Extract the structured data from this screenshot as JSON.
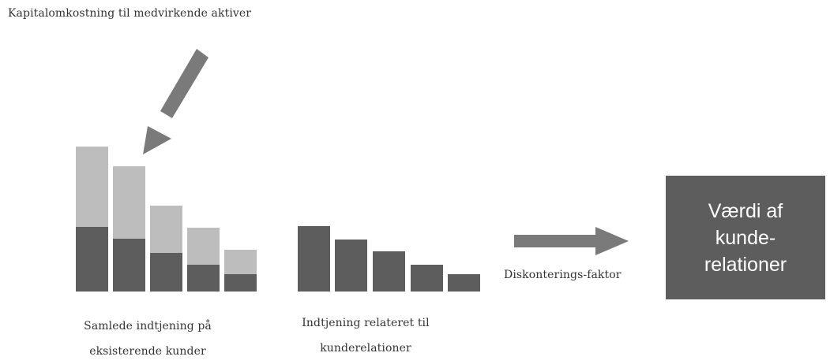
{
  "capital_cost_label": "Kapitalomkostning til medvirkende aktiver",
  "total_earnings_label": {
    "line1": "Samlede indtjening på",
    "line2": "eksisterende kunder"
  },
  "relation_earnings_label": {
    "line1": "Indtjening relateret til",
    "line2": "kunderelationer"
  },
  "discount_label": "Diskonterings-faktor",
  "value_box": {
    "text": "Værdi af\nkunde-\nrelationer",
    "background": "#5d5d5d"
  },
  "colors": {
    "dark_bar": "#5d5d5d",
    "light_bar": "#bdbdbd",
    "arrow": "#7a7a7a"
  }
}
